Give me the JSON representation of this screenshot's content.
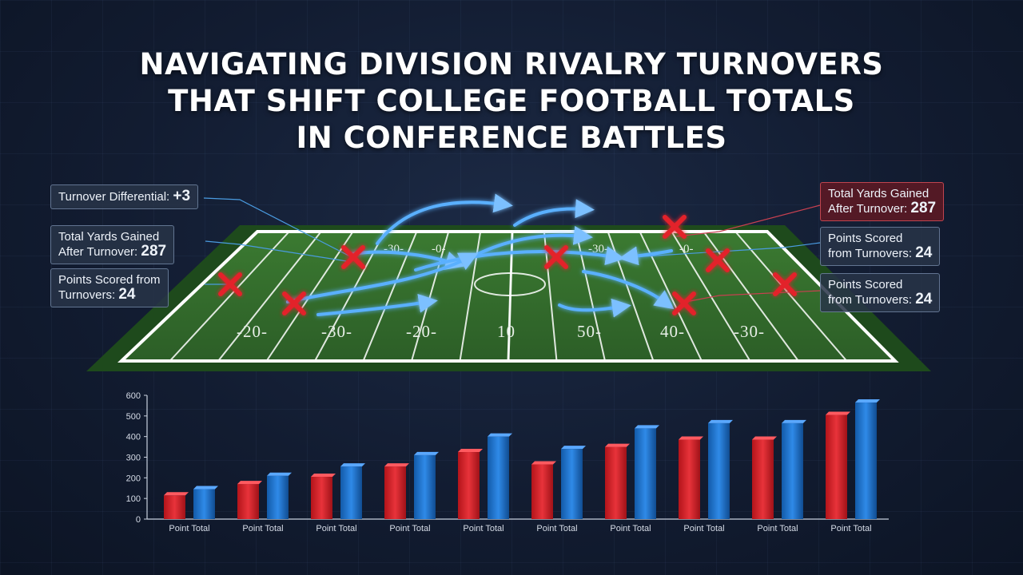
{
  "title": {
    "line1": "NAVIGATING DIVISION RIVALRY TURNOVERS",
    "line2": "THAT SHIFT COLLEGE FOOTBALL TOTALS",
    "line3": "IN CONFERENCE BATTLES"
  },
  "callouts": {
    "left_1": {
      "text": "Turnover Differential: ",
      "value": "+3"
    },
    "left_2": {
      "line1": "Total Yards Gained",
      "line2": "After Turnover: ",
      "value": "287"
    },
    "left_3": {
      "line1": "Points Scored from",
      "line2": "Turnovers: ",
      "value": "24"
    },
    "right_1": {
      "line1": "Total Yards Gained",
      "line2": "After Turnover: ",
      "value": "287"
    },
    "right_2": {
      "line1": "Points Scored",
      "line2": "from Turnovers: ",
      "value": "24"
    },
    "right_3": {
      "line1": "Points Scored",
      "line2": "from Turnovers: ",
      "value": "24"
    }
  },
  "field": {
    "top_numbers": [
      "-30-",
      "-0-",
      "-0-",
      "-30-",
      "-0-"
    ],
    "bottom_numbers": [
      "-20-",
      "-30-",
      "-20-",
      "10",
      "50-",
      "40-",
      "-30-"
    ]
  },
  "colors": {
    "red_series": "#e0262c",
    "blue_series": "#1f78d6",
    "field_green": "#2f6a2a",
    "turnover_marker": "#e3202a",
    "arrow_glow": "#4aa3ff"
  },
  "chart_data": {
    "type": "bar",
    "categories": [
      "Point Total",
      "Point Total",
      "Point Total",
      "Point Total",
      "Point Total",
      "Point Total",
      "Point Total",
      "Point Total",
      "Point Total",
      "Point Total"
    ],
    "series": [
      {
        "color": "red",
        "values": [
          115,
          170,
          205,
          255,
          325,
          265,
          350,
          385,
          385,
          505
        ]
      },
      {
        "color": "blue",
        "values": [
          145,
          210,
          255,
          310,
          400,
          340,
          440,
          465,
          465,
          565
        ]
      }
    ],
    "yticks": [
      0,
      100,
      200,
      300,
      400,
      500,
      600
    ],
    "ylim": [
      0,
      600
    ],
    "grid": false,
    "legend": "none"
  }
}
